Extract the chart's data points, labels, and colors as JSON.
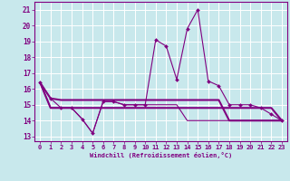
{
  "xlabel": "Windchill (Refroidissement éolien,°C)",
  "x": [
    0,
    1,
    2,
    3,
    4,
    5,
    6,
    7,
    8,
    9,
    10,
    11,
    12,
    13,
    14,
    15,
    16,
    17,
    18,
    19,
    20,
    21,
    22,
    23
  ],
  "line1": [
    16.4,
    15.4,
    14.8,
    14.8,
    14.1,
    13.2,
    15.2,
    15.2,
    15.0,
    15.0,
    15.0,
    19.1,
    18.7,
    16.6,
    19.8,
    21.0,
    16.5,
    16.2,
    15.0,
    15.0,
    15.0,
    14.8,
    14.4,
    14.0
  ],
  "line2": [
    16.4,
    15.4,
    15.3,
    15.3,
    15.3,
    15.3,
    15.3,
    15.3,
    15.3,
    15.3,
    15.3,
    15.3,
    15.3,
    15.3,
    15.3,
    15.3,
    15.3,
    15.3,
    14.0,
    14.0,
    14.0,
    14.0,
    14.0,
    14.0
  ],
  "line3": [
    16.4,
    14.8,
    14.8,
    14.8,
    14.8,
    14.8,
    14.8,
    14.8,
    14.8,
    14.8,
    14.8,
    14.8,
    14.8,
    14.8,
    14.8,
    14.8,
    14.8,
    14.8,
    14.8,
    14.8,
    14.8,
    14.8,
    14.8,
    14.0
  ],
  "line4": [
    16.4,
    14.8,
    14.8,
    14.8,
    14.1,
    13.2,
    15.2,
    15.2,
    15.0,
    15.0,
    15.0,
    15.0,
    15.0,
    15.0,
    14.0,
    14.0,
    14.0,
    14.0,
    14.0,
    14.0,
    14.0,
    14.0,
    14.0,
    14.0
  ],
  "color": "#800080",
  "bg_color": "#c8e8ec",
  "grid_color": "#ffffff",
  "ylim": [
    12.7,
    21.5
  ],
  "yticks": [
    13,
    14,
    15,
    16,
    17,
    18,
    19,
    20,
    21
  ],
  "xlim": [
    -0.5,
    23.5
  ],
  "xticks": [
    0,
    1,
    2,
    3,
    4,
    5,
    6,
    7,
    8,
    9,
    10,
    11,
    12,
    13,
    14,
    15,
    16,
    17,
    18,
    19,
    20,
    21,
    22,
    23
  ]
}
